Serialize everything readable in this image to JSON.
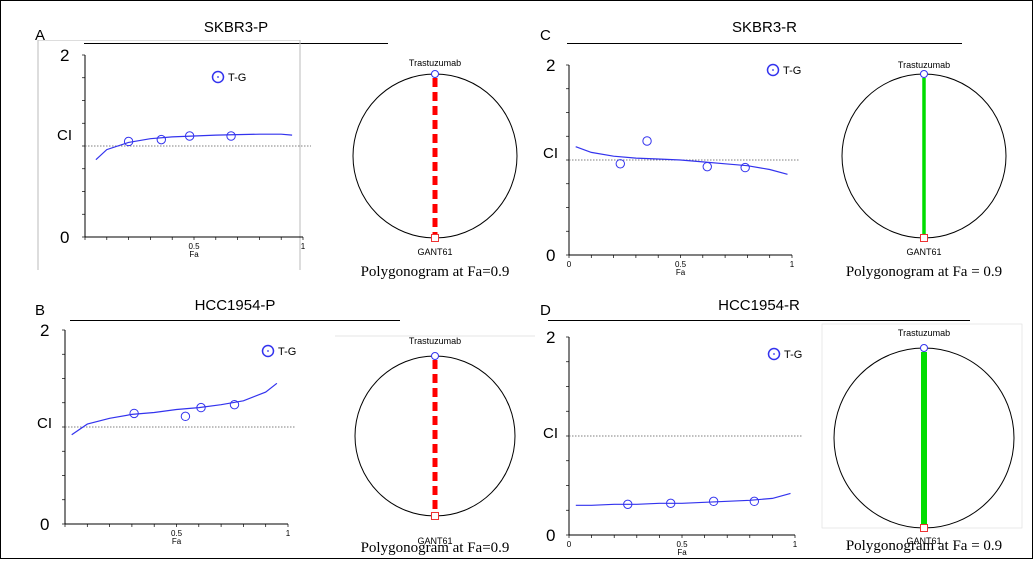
{
  "style": {
    "curve_color": "#3333ee",
    "point_color": "#3333ee",
    "reference_line_color": "#555555",
    "antagonism_color": "#ff0000",
    "synergy_color": "#00dd00",
    "vertex_top_color": "#3333ee",
    "vertex_bottom_color": "#ee3333"
  },
  "panels": {
    "A": {
      "letter": "A",
      "title": "SKBR3-P",
      "ci_label": "CI",
      "y_max_label": "2",
      "y_min_label": "0",
      "legend_label": "T-G",
      "polygonogram": {
        "top_vertex": "Trastuzumab",
        "bottom_vertex": "GANT61",
        "caption": "Polygonogram at Fa=0.9",
        "edge": "antagonism-dashed-red"
      }
    },
    "B": {
      "letter": "B",
      "title": "HCC1954-P",
      "ci_label": "CI",
      "y_max_label": "2",
      "y_min_label": "0",
      "legend_label": "T-G",
      "polygonogram": {
        "top_vertex": "Trastuzumab",
        "bottom_vertex": "GANT61",
        "caption": "Polygonogram at Fa=0.9",
        "edge": "antagonism-dashed-red"
      }
    },
    "C": {
      "letter": "C",
      "title": "SKBR3-R",
      "ci_label": "CI",
      "y_max_label": "2",
      "y_min_label": "0",
      "legend_label": "T-G",
      "polygonogram": {
        "top_vertex": "Trastuzumab",
        "bottom_vertex": "GANT61",
        "caption": "Polygonogram at Fa = 0.9",
        "edge": "synergy-solid-green"
      }
    },
    "D": {
      "letter": "D",
      "title": "HCC1954-R",
      "ci_label": "CI",
      "y_max_label": "2",
      "y_min_label": "0",
      "legend_label": "T-G",
      "polygonogram": {
        "top_vertex": "Trastuzumab",
        "bottom_vertex": "GANT61",
        "caption": "Polygonogram at Fa = 0.9",
        "edge": "strong-synergy-thick-green"
      }
    }
  },
  "chart_data": [
    {
      "panel": "A",
      "type": "scatter",
      "title": "SKBR3-P",
      "xlabel": "Fa",
      "ylabel": "CI",
      "xlim": [
        0,
        1
      ],
      "ylim": [
        0,
        2
      ],
      "x_ticks": [
        "0.5",
        "1"
      ],
      "reference_line": 1,
      "legend": [
        "T-G"
      ],
      "legend_position": "top-right",
      "points": {
        "x": [
          0.2,
          0.35,
          0.48,
          0.67
        ],
        "y": [
          1.05,
          1.07,
          1.11,
          1.11
        ]
      },
      "curve": {
        "x": [
          0.05,
          0.1,
          0.2,
          0.3,
          0.4,
          0.5,
          0.6,
          0.7,
          0.8,
          0.9,
          0.95
        ],
        "y": [
          0.85,
          0.96,
          1.04,
          1.08,
          1.1,
          1.11,
          1.12,
          1.125,
          1.13,
          1.13,
          1.12
        ]
      }
    },
    {
      "panel": "B",
      "type": "scatter",
      "title": "HCC1954-P",
      "xlabel": "Fa",
      "ylabel": "CI",
      "xlim": [
        0,
        1
      ],
      "ylim": [
        0,
        2
      ],
      "x_ticks": [
        "0.5",
        "1"
      ],
      "reference_line": 1,
      "legend": [
        "T-G"
      ],
      "legend_position": "top-right",
      "points": {
        "x": [
          0.31,
          0.54,
          0.61,
          0.76
        ],
        "y": [
          1.14,
          1.11,
          1.2,
          1.23
        ]
      },
      "curve": {
        "x": [
          0.03,
          0.1,
          0.2,
          0.3,
          0.4,
          0.5,
          0.6,
          0.7,
          0.8,
          0.9,
          0.95
        ],
        "y": [
          0.92,
          1.03,
          1.09,
          1.13,
          1.15,
          1.18,
          1.2,
          1.23,
          1.27,
          1.36,
          1.45
        ]
      }
    },
    {
      "panel": "C",
      "type": "scatter",
      "title": "SKBR3-R",
      "xlabel": "Fa",
      "ylabel": "CI",
      "xlim": [
        0,
        1
      ],
      "ylim": [
        0,
        2
      ],
      "x_ticks": [
        "0",
        "0.5",
        "1"
      ],
      "reference_line": 1,
      "legend": [
        "T-G"
      ],
      "legend_position": "top-right",
      "points": {
        "x": [
          0.23,
          0.35,
          0.62,
          0.79
        ],
        "y": [
          0.96,
          1.2,
          0.93,
          0.92
        ]
      },
      "curve": {
        "x": [
          0.03,
          0.1,
          0.2,
          0.3,
          0.4,
          0.5,
          0.6,
          0.7,
          0.8,
          0.9,
          0.98
        ],
        "y": [
          1.14,
          1.08,
          1.04,
          1.02,
          1.01,
          1.0,
          0.98,
          0.96,
          0.94,
          0.9,
          0.85
        ]
      }
    },
    {
      "panel": "D",
      "type": "scatter",
      "title": "HCC1954-R",
      "xlabel": "Fa",
      "ylabel": "CI",
      "xlim": [
        0,
        1
      ],
      "ylim": [
        0,
        2
      ],
      "x_ticks": [
        "0",
        "0.5",
        "1"
      ],
      "reference_line": 1,
      "legend": [
        "T-G"
      ],
      "legend_position": "top-right",
      "points": {
        "x": [
          0.26,
          0.45,
          0.64,
          0.82
        ],
        "y": [
          0.31,
          0.32,
          0.34,
          0.34
        ]
      },
      "curve": {
        "x": [
          0.03,
          0.1,
          0.2,
          0.3,
          0.4,
          0.5,
          0.6,
          0.7,
          0.8,
          0.9,
          0.98
        ],
        "y": [
          0.3,
          0.3,
          0.31,
          0.31,
          0.32,
          0.32,
          0.33,
          0.34,
          0.35,
          0.37,
          0.42
        ]
      }
    }
  ]
}
